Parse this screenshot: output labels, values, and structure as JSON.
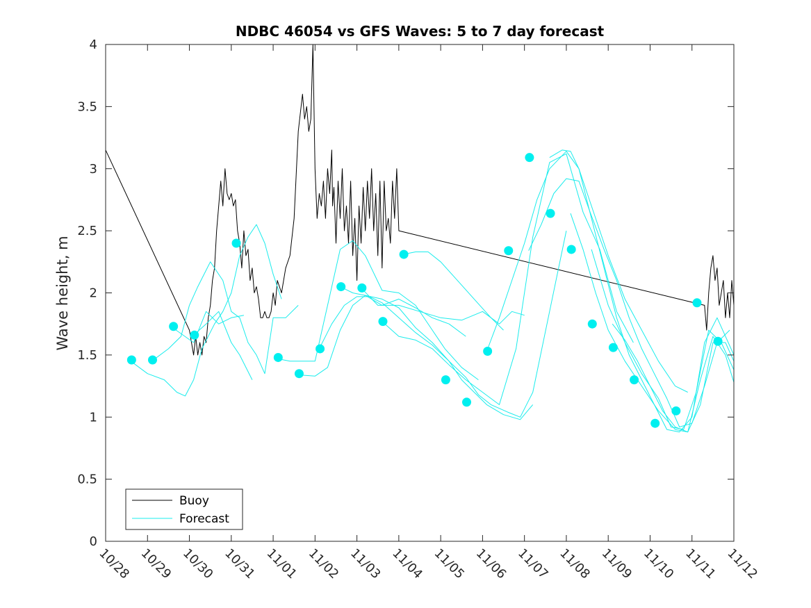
{
  "chart_data": {
    "type": "line",
    "title": "NDBC 46054 vs GFS Waves: 5 to 7 day forecast",
    "xlabel": "",
    "ylabel": "Wave height, m",
    "xlim": [
      0,
      15
    ],
    "ylim": [
      0,
      4
    ],
    "x_unit": "days since 10/28",
    "x_ticks": [
      0,
      1,
      2,
      3,
      4,
      5,
      6,
      7,
      8,
      9,
      10,
      11,
      12,
      13,
      14,
      15
    ],
    "x_tick_labels": [
      "10/28",
      "10/29",
      "10/30",
      "10/31",
      "11/01",
      "11/02",
      "11/03",
      "11/04",
      "11/05",
      "11/06",
      "11/07",
      "11/08",
      "11/09",
      "11/10",
      "11/11",
      "11/12"
    ],
    "y_ticks": [
      0,
      0.5,
      1,
      1.5,
      2,
      2.5,
      3,
      3.5,
      4
    ],
    "y_tick_labels": [
      "0",
      "0.5",
      "1",
      "1.5",
      "2",
      "2.5",
      "3",
      "3.5",
      "4"
    ],
    "legend": {
      "position": "bottom-left",
      "entries": [
        {
          "label": "Buoy",
          "color": "#000000"
        },
        {
          "label": "Forecast",
          "color": "#00eeee"
        }
      ]
    },
    "colors": {
      "buoy": "#000000",
      "forecast": "#19ecec",
      "marker": "#00efef"
    },
    "series": [
      {
        "name": "Buoy",
        "x": [
          0,
          2.0,
          2.1,
          2.15,
          2.2,
          2.25,
          2.3,
          2.35,
          2.4,
          2.45,
          2.5,
          2.55,
          2.6,
          2.65,
          2.7,
          2.75,
          2.8,
          2.85,
          2.9,
          2.95,
          3.0,
          3.05,
          3.1,
          3.15,
          3.2,
          3.25,
          3.3,
          3.35,
          3.4,
          3.45,
          3.5,
          3.55,
          3.6,
          3.65,
          3.7,
          3.75,
          3.8,
          3.85,
          3.9,
          3.95,
          4.0,
          4.05,
          4.1,
          4.2,
          4.3,
          4.4,
          4.5,
          4.6,
          4.7,
          4.75,
          4.8,
          4.85,
          4.9,
          4.95,
          5.0,
          5.05,
          5.1,
          5.15,
          5.2,
          5.25,
          5.3,
          5.35,
          5.4,
          5.42,
          5.45,
          5.5,
          5.55,
          5.6,
          5.65,
          5.7,
          5.75,
          5.8,
          5.85,
          5.9,
          5.95,
          6.0,
          6.05,
          6.1,
          6.15,
          6.2,
          6.25,
          6.3,
          6.35,
          6.4,
          6.45,
          6.5,
          6.55,
          6.6,
          6.65,
          6.7,
          6.75,
          6.8,
          6.85,
          6.9,
          6.95,
          7.0,
          14.3,
          14.35,
          14.4,
          14.45,
          14.5,
          14.55,
          14.6,
          14.65,
          14.7,
          14.75,
          14.8,
          14.85,
          14.9,
          14.95,
          15.0
        ],
        "values": [
          3.15,
          1.7,
          1.5,
          1.65,
          1.5,
          1.6,
          1.5,
          1.65,
          1.6,
          1.8,
          1.9,
          2.1,
          2.2,
          2.5,
          2.7,
          2.9,
          2.7,
          3.0,
          2.8,
          2.75,
          2.8,
          2.7,
          2.75,
          2.5,
          2.4,
          2.2,
          2.5,
          2.3,
          2.35,
          2.1,
          2.2,
          2.0,
          2.05,
          1.95,
          1.8,
          1.8,
          1.85,
          1.8,
          1.8,
          1.85,
          2.0,
          1.9,
          2.1,
          2.0,
          2.2,
          2.3,
          2.6,
          3.3,
          3.6,
          3.4,
          3.5,
          3.3,
          3.4,
          4.0,
          3.0,
          2.6,
          2.8,
          2.7,
          2.9,
          2.6,
          3.0,
          2.8,
          3.15,
          2.7,
          2.85,
          2.4,
          2.9,
          2.6,
          3.0,
          2.5,
          2.7,
          2.4,
          2.9,
          2.3,
          2.6,
          2.1,
          2.7,
          2.4,
          2.85,
          2.5,
          2.9,
          2.6,
          3.0,
          2.5,
          2.8,
          2.3,
          2.9,
          2.2,
          2.9,
          2.5,
          2.6,
          2.4,
          2.9,
          2.6,
          3.0,
          2.5,
          1.9,
          1.7,
          2.0,
          2.2,
          2.3,
          2.1,
          2.2,
          1.9,
          2.0,
          2.1,
          1.8,
          2.0,
          1.8,
          2.1,
          1.9
        ]
      },
      {
        "name": "Forecast run 1",
        "x": [
          0.6,
          1.0,
          1.4,
          1.7,
          1.9,
          2.1,
          2.3,
          2.6,
          2.8,
          3.0,
          3.2,
          3.4,
          3.6,
          3.8,
          4.0,
          4.2
        ],
        "values": [
          1.45,
          1.35,
          1.3,
          1.2,
          1.17,
          1.3,
          1.55,
          1.75,
          1.85,
          2.0,
          2.3,
          2.45,
          2.55,
          2.4,
          2.15,
          1.95
        ]
      },
      {
        "name": "Forecast run 2",
        "x": [
          1.1,
          1.5,
          1.8,
          2.0,
          2.2,
          2.5,
          2.8,
          3.0,
          3.2,
          3.4,
          3.6,
          3.8,
          4.0,
          4.3,
          4.6
        ],
        "values": [
          1.45,
          1.55,
          1.65,
          1.9,
          2.05,
          2.25,
          2.1,
          1.85,
          1.8,
          1.6,
          1.5,
          1.35,
          1.8,
          1.8,
          1.9
        ]
      },
      {
        "name": "Forecast run 3",
        "x": [
          1.6,
          2.1,
          2.4,
          2.7,
          3.0,
          3.3
        ],
        "values": [
          1.72,
          1.6,
          1.85,
          1.75,
          1.8,
          1.82
        ]
      },
      {
        "name": "Forecast run 4",
        "x": [
          2.1,
          2.4,
          2.7,
          3.0,
          3.2,
          3.5
        ],
        "values": [
          1.66,
          1.75,
          1.85,
          1.6,
          1.5,
          1.3
        ]
      },
      {
        "name": "Forecast run 5",
        "x": [
          4.1,
          4.4,
          4.7,
          5.0,
          5.3,
          5.6,
          5.9,
          6.2,
          6.6,
          7.0,
          7.4,
          7.8,
          8.1,
          8.5,
          8.9
        ],
        "values": [
          1.47,
          1.45,
          1.45,
          1.45,
          1.9,
          2.35,
          2.42,
          2.3,
          2.02,
          2.0,
          1.9,
          1.7,
          1.55,
          1.4,
          1.3
        ]
      },
      {
        "name": "Forecast run 6",
        "x": [
          4.6,
          5.0,
          5.3,
          5.6,
          5.9,
          6.2,
          6.6,
          7.0,
          7.4,
          7.8,
          8.2,
          8.5,
          8.8,
          9.1,
          9.5,
          9.9,
          10.2
        ],
        "values": [
          1.34,
          1.33,
          1.4,
          1.7,
          1.9,
          1.98,
          1.95,
          1.88,
          1.72,
          1.6,
          1.45,
          1.3,
          1.2,
          1.1,
          1.02,
          0.98,
          1.1
        ]
      },
      {
        "name": "Forecast run 7",
        "x": [
          5.1,
          5.4,
          5.7,
          6.0,
          6.3,
          6.6,
          7.0,
          7.4,
          7.8,
          8.2,
          8.6,
          8.9,
          9.2,
          9.6,
          9.9,
          10.2,
          10.6,
          11.0
        ],
        "values": [
          1.55,
          1.75,
          1.9,
          1.97,
          1.97,
          1.92,
          1.8,
          1.68,
          1.58,
          1.45,
          1.32,
          1.18,
          1.1,
          1.04,
          1.0,
          1.2,
          1.85,
          2.5
        ]
      },
      {
        "name": "Forecast run 8",
        "x": [
          5.6,
          5.9,
          6.2,
          6.6,
          7.0,
          7.4,
          7.8,
          8.2,
          8.6
        ],
        "values": [
          2.05,
          2.0,
          1.98,
          1.9,
          1.95,
          1.88,
          1.8,
          1.75,
          1.65
        ]
      },
      {
        "name": "Forecast run 9",
        "x": [
          6.1,
          6.5,
          7.0,
          7.5,
          8.0,
          8.5,
          9.0,
          9.4,
          9.7,
          10.0
        ],
        "values": [
          2.04,
          1.9,
          1.9,
          1.85,
          1.8,
          1.78,
          1.85,
          1.75,
          1.85,
          1.82
        ]
      },
      {
        "name": "Forecast run 10",
        "x": [
          6.6,
          7.0,
          7.4,
          7.8,
          8.2,
          8.6,
          9.0,
          9.4,
          9.8,
          10.2,
          10.6,
          11.0,
          11.4,
          11.8,
          12.2,
          12.6
        ],
        "values": [
          1.77,
          1.65,
          1.62,
          1.55,
          1.42,
          1.3,
          1.2,
          1.1,
          1.55,
          2.45,
          3.05,
          3.12,
          2.65,
          2.35,
          1.85,
          1.6
        ]
      },
      {
        "name": "Forecast run 11",
        "x": [
          7.1,
          7.4,
          7.7,
          8.0,
          8.4,
          8.8,
          9.2,
          9.5
        ],
        "values": [
          2.31,
          2.33,
          2.33,
          2.25,
          2.1,
          1.95,
          1.8,
          1.7
        ]
      },
      {
        "name": "Forecast run 12",
        "x": [
          9.1,
          9.4,
          9.7,
          10.0,
          10.3,
          10.6,
          11.0,
          11.3,
          11.6,
          12.0,
          12.4,
          12.8,
          13.2,
          13.6,
          13.9
        ],
        "values": [
          1.53,
          1.8,
          2.1,
          2.4,
          2.75,
          3.0,
          3.14,
          3.0,
          2.7,
          2.3,
          1.95,
          1.7,
          1.45,
          1.25,
          1.2
        ]
      },
      {
        "name": "Forecast run 13",
        "x": [
          10.1,
          10.4,
          10.7,
          11.0,
          11.3,
          11.6,
          11.9,
          12.2,
          12.5,
          12.8,
          13.1,
          13.4,
          13.7,
          14.0,
          14.3,
          14.6,
          14.9
        ],
        "values": [
          2.34,
          2.55,
          2.8,
          2.92,
          2.9,
          2.62,
          2.35,
          2.1,
          1.8,
          1.55,
          1.35,
          1.15,
          0.92,
          0.95,
          1.25,
          1.6,
          1.7
        ]
      },
      {
        "name": "Forecast run 14",
        "x": [
          10.6,
          10.9,
          11.1,
          11.3,
          11.6,
          11.9,
          12.2,
          12.5,
          12.8,
          13.1,
          13.4,
          13.7,
          14.0,
          14.3,
          14.6,
          15.0
        ],
        "values": [
          3.09,
          3.15,
          3.14,
          3.0,
          2.6,
          2.2,
          1.8,
          1.5,
          1.3,
          1.1,
          0.9,
          0.88,
          1.0,
          1.6,
          1.8,
          1.5
        ]
      },
      {
        "name": "Forecast run 15",
        "x": [
          11.1,
          11.4,
          11.7,
          12.0,
          12.4,
          12.8,
          13.2,
          13.6,
          13.9,
          14.2,
          14.5,
          14.8,
          15.0
        ],
        "values": [
          2.64,
          2.35,
          2.0,
          1.7,
          1.45,
          1.25,
          1.05,
          0.9,
          0.88,
          1.1,
          1.6,
          1.6,
          1.45
        ]
      },
      {
        "name": "Forecast run 16",
        "x": [
          11.6,
          12.0,
          12.4,
          12.8,
          13.2,
          13.5,
          13.8,
          14.1,
          14.4,
          14.7,
          15.0
        ],
        "values": [
          2.35,
          1.9,
          1.6,
          1.35,
          1.15,
          0.92,
          0.9,
          1.2,
          1.7,
          1.6,
          1.38
        ]
      },
      {
        "name": "Forecast run 17",
        "x": [
          12.1,
          12.4,
          12.7,
          13.0,
          13.3,
          13.6,
          13.9,
          14.2,
          14.5,
          14.8,
          15.0
        ],
        "values": [
          1.75,
          1.62,
          1.45,
          1.25,
          1.05,
          0.92,
          0.88,
          1.3,
          1.65,
          1.5,
          1.28
        ]
      }
    ],
    "markers": {
      "name": "Forecast",
      "x": [
        0.62,
        1.12,
        1.62,
        2.12,
        3.12,
        4.12,
        4.62,
        5.12,
        5.62,
        6.12,
        6.62,
        7.12,
        8.12,
        8.62,
        9.12,
        9.62,
        10.12,
        10.62,
        11.12,
        11.62,
        12.12,
        12.62,
        13.12,
        13.62,
        14.12,
        14.62
      ],
      "values": [
        1.46,
        1.46,
        1.73,
        1.66,
        2.4,
        1.48,
        1.35,
        1.55,
        2.05,
        2.04,
        1.77,
        2.31,
        1.3,
        1.12,
        1.53,
        2.34,
        3.09,
        2.64,
        2.35,
        1.75,
        1.56,
        1.3,
        0.95,
        1.05,
        1.92,
        1.61
      ]
    }
  }
}
